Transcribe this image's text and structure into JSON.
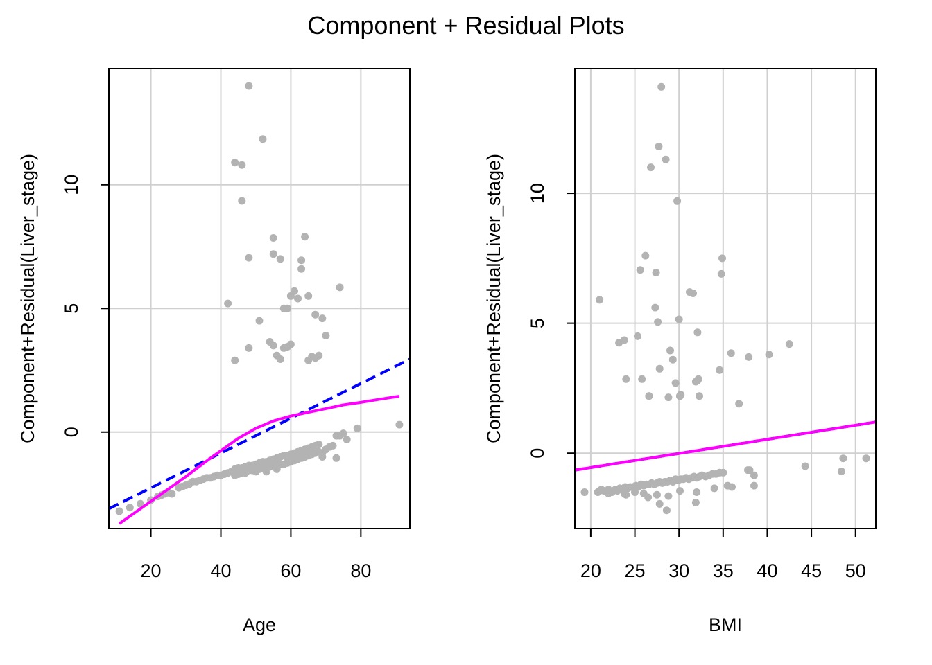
{
  "figure": {
    "title": "Component + Residual Plots"
  },
  "colors": {
    "points": "#b3b3b3",
    "linear_fit": "#0000ff",
    "smooth_fit": "#ff00ff",
    "grid": "#d0d0d0",
    "axes": "#000000"
  },
  "chart_data": [
    {
      "type": "scatter",
      "xlabel": "Age",
      "ylabel": "Component+Residual(Liver_stage)",
      "xlim": [
        8,
        94
      ],
      "ylim": [
        -3.9,
        14.7
      ],
      "xticks": [
        20,
        40,
        60,
        80
      ],
      "yticks": [
        0,
        5,
        10
      ],
      "grid": true,
      "points": {
        "x": [
          11,
          14,
          17,
          20,
          22,
          23,
          24,
          25,
          26,
          28,
          29,
          30,
          31,
          32,
          33,
          34,
          35,
          36,
          37,
          38,
          39,
          40,
          41,
          42,
          43,
          44,
          44,
          45,
          45,
          46,
          46,
          47,
          47,
          48,
          48,
          49,
          49,
          50,
          50,
          51,
          51,
          52,
          52,
          53,
          53,
          54,
          54,
          55,
          55,
          56,
          56,
          57,
          57,
          58,
          58,
          59,
          59,
          60,
          60,
          61,
          61,
          62,
          62,
          63,
          63,
          64,
          64,
          65,
          65,
          66,
          66,
          67,
          67,
          68,
          68,
          69,
          70,
          71,
          72,
          73,
          74,
          75,
          76,
          79,
          91,
          73,
          69,
          64,
          59,
          56,
          53,
          50,
          47,
          44,
          48,
          44,
          46,
          46,
          52,
          42,
          48,
          55,
          55,
          57,
          58,
          63,
          63,
          59,
          60,
          61,
          62,
          64,
          65,
          67,
          68,
          69,
          70,
          74,
          44,
          48,
          51,
          54,
          55,
          56,
          57,
          58,
          59,
          60,
          65,
          66,
          67
        ],
        "y": [
          -3.2,
          -3.05,
          -2.9,
          -2.75,
          -2.6,
          -2.55,
          -2.5,
          -2.45,
          -2.5,
          -2.25,
          -2.2,
          -2.15,
          -2.1,
          -2.0,
          -2.0,
          -1.95,
          -1.9,
          -1.85,
          -1.85,
          -1.8,
          -1.75,
          -1.75,
          -1.7,
          -1.65,
          -1.6,
          -1.5,
          -1.75,
          -1.45,
          -1.7,
          -1.45,
          -1.65,
          -1.4,
          -1.6,
          -1.35,
          -1.55,
          -1.35,
          -1.55,
          -1.3,
          -1.5,
          -1.25,
          -1.5,
          -1.2,
          -1.45,
          -1.2,
          -1.4,
          -1.15,
          -1.4,
          -1.1,
          -1.35,
          -1.05,
          -1.35,
          -1.0,
          -1.3,
          -0.95,
          -1.3,
          -0.95,
          -1.25,
          -0.9,
          -1.2,
          -0.85,
          -1.15,
          -0.8,
          -1.1,
          -0.75,
          -1.05,
          -0.7,
          -1.0,
          -0.65,
          -0.95,
          -0.6,
          -0.9,
          -0.55,
          -0.85,
          -0.5,
          -0.8,
          -0.85,
          -0.7,
          -0.6,
          -0.55,
          -0.15,
          -0.15,
          -0.05,
          -0.3,
          0.15,
          0.3,
          -1.05,
          -1.0,
          -1.0,
          -1.05,
          -1.5,
          -1.6,
          -1.6,
          -1.65,
          -1.55,
          14.0,
          10.9,
          10.8,
          9.35,
          11.85,
          5.2,
          7.05,
          7.85,
          7.2,
          7.0,
          5.0,
          6.95,
          6.6,
          5.0,
          5.5,
          5.7,
          5.4,
          7.9,
          5.5,
          4.75,
          3.1,
          4.6,
          3.9,
          5.85,
          2.9,
          3.4,
          4.5,
          3.65,
          3.5,
          3.1,
          2.95,
          3.4,
          3.45,
          3.55,
          2.9,
          3.05,
          3.0
        ],
        "color": "#b3b3b3"
      },
      "linear_fit": {
        "x": [
          8,
          94
        ],
        "y": [
          -3.1,
          2.95
        ],
        "color": "#0000ff",
        "style": "dashed"
      },
      "smooth_fit": {
        "x": [
          11,
          20,
          30,
          38,
          45,
          50,
          55,
          60,
          65,
          70,
          75,
          80,
          85,
          91
        ],
        "y": [
          -3.7,
          -2.8,
          -1.8,
          -0.95,
          -0.25,
          0.15,
          0.45,
          0.65,
          0.8,
          0.95,
          1.1,
          1.2,
          1.32,
          1.45
        ],
        "color": "#ff00ff",
        "style": "solid"
      }
    },
    {
      "type": "scatter",
      "xlabel": "BMI",
      "ylabel": "Component+Residual(Liver_stage)",
      "xlim": [
        18.2,
        52.3
      ],
      "ylim": [
        -2.9,
        14.8
      ],
      "xticks": [
        20,
        25,
        30,
        35,
        40,
        45,
        50
      ],
      "yticks": [
        0,
        5,
        10
      ],
      "grid": true,
      "points": {
        "x": [
          19.3,
          20.8,
          21.2,
          21.5,
          22.0,
          22.4,
          22.8,
          23.0,
          23.3,
          23.6,
          23.9,
          24.2,
          24.5,
          24.8,
          25.1,
          25.4,
          25.7,
          26.0,
          26.3,
          26.6,
          26.9,
          27.2,
          27.5,
          27.8,
          28.1,
          28.4,
          28.7,
          29.0,
          29.3,
          29.6,
          29.9,
          30.2,
          30.5,
          30.8,
          31.1,
          31.4,
          31.7,
          32.0,
          32.3,
          32.6,
          33.0,
          33.4,
          33.8,
          34.2,
          34.6,
          35.0,
          35.5,
          37.8,
          38.0,
          38.5,
          44.3,
          48.4,
          48.6,
          51.2,
          21.0,
          22.0,
          24.0,
          26.0,
          27.5,
          28.8,
          30.1,
          32.0,
          34.0,
          36.0,
          38.5,
          27.8,
          28.6,
          31.9,
          23.8,
          25.0,
          26.5
        ],
        "y": [
          -1.5,
          -1.5,
          -1.4,
          -1.45,
          -1.4,
          -1.5,
          -1.4,
          -1.45,
          -1.35,
          -1.4,
          -1.3,
          -1.35,
          -1.3,
          -1.3,
          -1.25,
          -1.3,
          -1.2,
          -1.25,
          -1.2,
          -1.2,
          -1.15,
          -1.2,
          -1.15,
          -1.1,
          -1.15,
          -1.1,
          -1.1,
          -1.05,
          -1.1,
          -1.0,
          -1.05,
          -1.0,
          -1.0,
          -0.95,
          -1.0,
          -0.95,
          -0.9,
          -0.95,
          -0.9,
          -0.85,
          -0.9,
          -0.85,
          -0.8,
          -0.8,
          -0.75,
          -0.75,
          -1.25,
          -0.65,
          -0.65,
          -0.85,
          -0.5,
          -0.7,
          -0.2,
          -0.2,
          -1.45,
          -1.55,
          -1.6,
          -1.55,
          -1.6,
          -1.65,
          -1.45,
          -1.5,
          -1.35,
          -1.3,
          -1.25,
          -1.95,
          -2.2,
          -1.9,
          -1.55,
          -1.5,
          -1.7
        ],
        "color": "#b3b3b3"
      },
      "outlier_points": {
        "x": [
          21.0,
          23.2,
          23.8,
          24.0,
          25.3,
          25.6,
          25.8,
          26.2,
          26.6,
          26.8,
          27.3,
          27.4,
          27.6,
          27.7,
          27.8,
          28.0,
          28.5,
          28.8,
          29.0,
          29.3,
          29.6,
          29.8,
          30.0,
          30.1,
          30.2,
          31.2,
          31.6,
          31.9,
          32.1,
          32.2,
          32.3,
          34.6,
          34.8,
          34.9,
          35.9,
          36.8,
          37.9,
          40.2,
          42.5,
          26.6,
          30.1,
          32.1
        ],
        "y": [
          5.9,
          4.25,
          4.35,
          2.85,
          4.5,
          7.05,
          2.85,
          7.6,
          2.2,
          11.0,
          5.6,
          6.95,
          5.05,
          11.8,
          3.25,
          14.1,
          11.3,
          2.15,
          3.95,
          3.6,
          2.7,
          9.7,
          5.15,
          2.2,
          2.25,
          6.2,
          6.15,
          2.75,
          4.65,
          2.85,
          2.2,
          3.2,
          6.9,
          7.5,
          3.85,
          1.9,
          3.7,
          3.8,
          4.2,
          2.2,
          2.2,
          2.8
        ],
        "color": "#b3b3b3"
      },
      "linear_fit": {
        "x": [
          18.2,
          52.3
        ],
        "y": [
          -0.65,
          1.2
        ],
        "color": "#0000ff",
        "style": "dashed"
      },
      "smooth_fit": {
        "x": [
          18.2,
          52.3
        ],
        "y": [
          -0.65,
          1.2
        ],
        "color": "#ff00ff",
        "style": "solid"
      }
    }
  ]
}
